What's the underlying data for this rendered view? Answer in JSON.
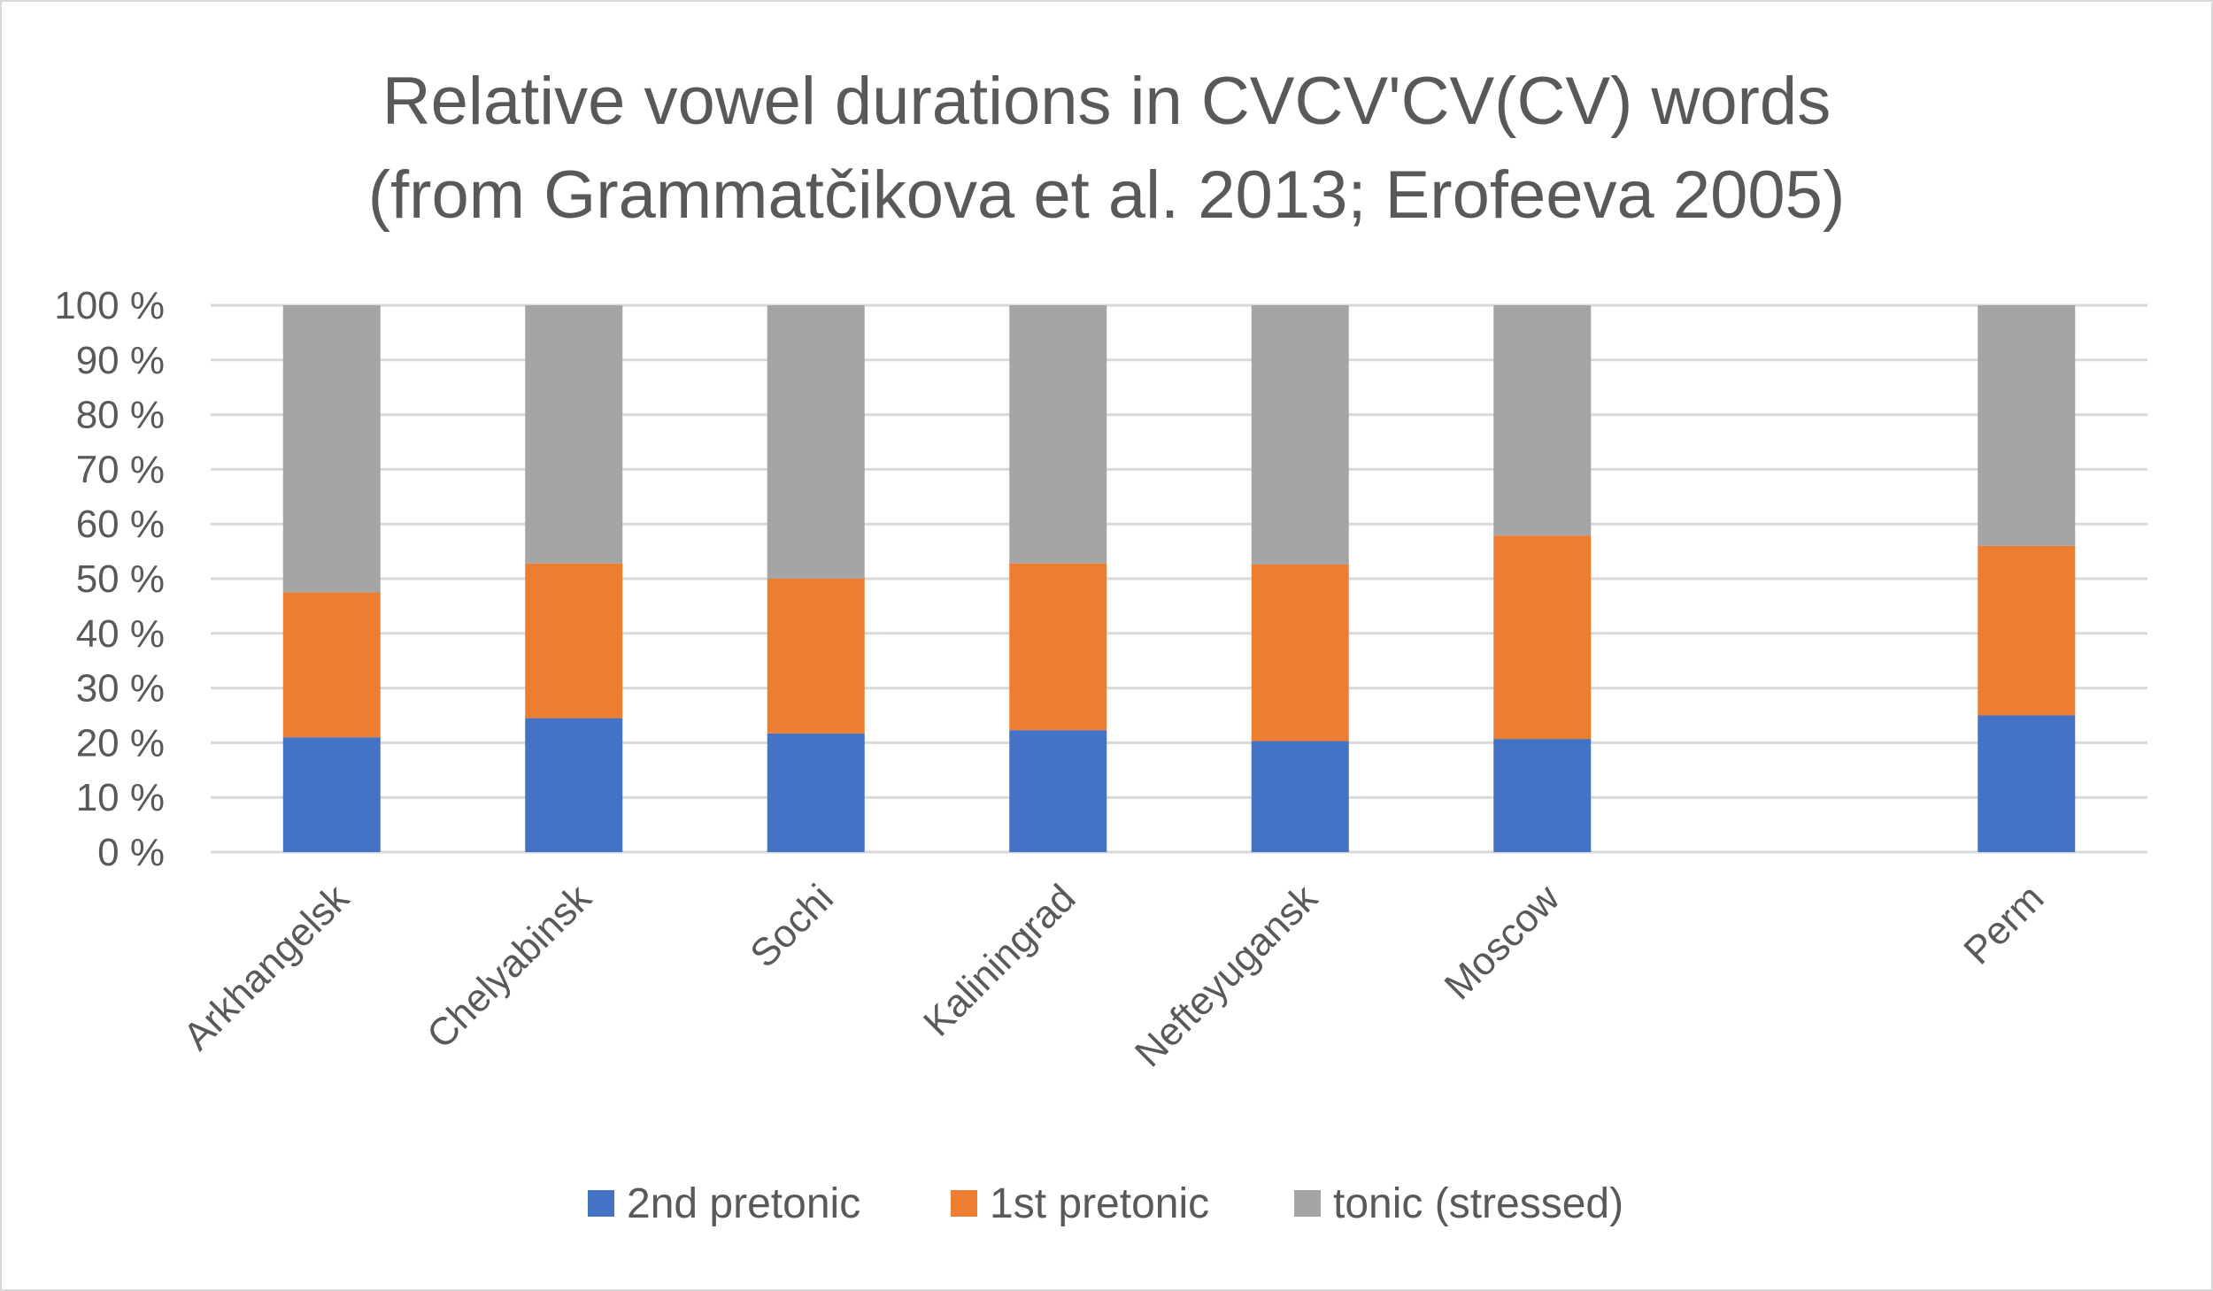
{
  "chart_data": {
    "type": "bar",
    "stacked": true,
    "title_lines": [
      "Relative vowel durations in CVCV'CV(CV) words",
      "(from Grammatčikova et al. 2013; Erofeeva 2005)"
    ],
    "categories": [
      "Arkhangelsk",
      "Chelyabinsk",
      "Sochi",
      "Kaliningrad",
      "Nefteyugansk",
      "Moscow",
      "",
      "Perm"
    ],
    "series": [
      {
        "name": "2nd pretonic",
        "color": "#4472c4",
        "values": [
          21,
          24.5,
          21.7,
          22.3,
          20.3,
          20.7,
          null,
          25
        ]
      },
      {
        "name": "1st pretonic",
        "color": "#ed7d31",
        "values": [
          26.5,
          28.3,
          28.3,
          30.5,
          32.3,
          37.2,
          null,
          31
        ]
      },
      {
        "name": "tonic (stressed)",
        "color": "#a5a5a5",
        "values": [
          52.5,
          47.2,
          50,
          47.2,
          47.4,
          42.1,
          null,
          44
        ]
      }
    ],
    "yticks": [
      "0 %",
      "10 %",
      "20 %",
      "30 %",
      "40 %",
      "50 %",
      "60 %",
      "70 %",
      "80 %",
      "90 %",
      "100 %"
    ],
    "ylim": [
      0,
      100
    ],
    "grid": true,
    "legend_position": "bottom"
  }
}
